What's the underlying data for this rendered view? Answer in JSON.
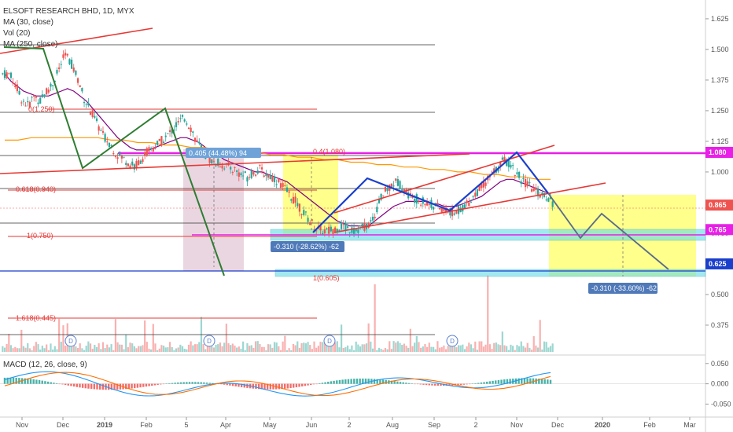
{
  "legend": {
    "symbol": "ELSOFT RESEARCH BHD, 1D, MYX",
    "ma30": "MA (30, close)",
    "vol": "Vol (20)",
    "ma250": "MA (250, close)",
    "macd": "MACD (12, 26, close, 9)"
  },
  "colors": {
    "up": "#26a69a",
    "down": "#ef5350",
    "ma30": "#800080",
    "ma250": "#ff9800",
    "magenta": "#e91ee8",
    "blue": "#1a3fcc",
    "green": "#2e7d32",
    "red": "#e53935",
    "cyan": "#66d9e8",
    "yellow": "#ffff66",
    "pink": "#d8b4c8",
    "grey": "#777777"
  },
  "chart_data": {
    "type": "candlestick",
    "title": "ELSOFT RESEARCH BHD, 1D, MYX",
    "x_ticks": [
      "Nov",
      "Dec",
      "2019",
      "Feb",
      "5",
      "Apr",
      "May",
      "Jun",
      "2",
      "Aug",
      "Sep",
      "2",
      "Nov",
      "Dec",
      "2020",
      "Feb",
      "Mar"
    ],
    "y_ticks": [
      "1.625",
      "1.500",
      "1.375",
      "1.250",
      "1.125",
      "1.000",
      "0.875",
      "0.750",
      "0.625",
      "0.500",
      "0.375"
    ],
    "ylim": [
      0.33,
      1.66
    ],
    "price_labels": [
      {
        "text": "1.080",
        "value": 1.08,
        "color": "#e91ee8"
      },
      {
        "text": "0.865",
        "value": 0.865,
        "color": "#ef5350"
      },
      {
        "text": "0.765",
        "value": 0.765,
        "color": "#e91ee8"
      },
      {
        "text": "0.625",
        "value": 0.625,
        "color": "#1a3fcc"
      }
    ],
    "fib_labels": [
      {
        "text": "0(1.250)",
        "value": 1.25
      },
      {
        "text": "0.618(0.940)",
        "value": 0.94
      },
      {
        "text": "1(0.750)",
        "value": 0.75
      },
      {
        "text": "1(0.605)",
        "value": 0.605
      },
      {
        "text": "1.618(0.445)",
        "value": 0.445
      }
    ],
    "measure_labels": [
      {
        "text": "0.405 (44.48%) 94"
      },
      {
        "text": "0.4(1.080)"
      },
      {
        "text": "-0.310 (-28.62%) -62"
      },
      {
        "text": "-0.310 (-33.60%) -62"
      }
    ],
    "dividend_marker": "D",
    "macd_ticks": [
      "0.050",
      "0.000",
      "-0.050"
    ],
    "macd_ylim": [
      -0.08,
      0.065
    ],
    "close_series": [
      1.4,
      1.36,
      1.3,
      1.27,
      1.31,
      1.29,
      1.33,
      1.36,
      1.42,
      1.48,
      1.44,
      1.38,
      1.3,
      1.25,
      1.2,
      1.15,
      1.12,
      1.08,
      1.06,
      1.04,
      1.02,
      1.05,
      1.08,
      1.1,
      1.12,
      1.14,
      1.17,
      1.2,
      1.22,
      1.18,
      1.12,
      1.08,
      1.05,
      1.04,
      1.03,
      1.02,
      1.01,
      0.99,
      0.98,
      1.0,
      1.01,
      0.99,
      0.98,
      0.96,
      0.93,
      0.9,
      0.87,
      0.83,
      0.8,
      0.77,
      0.76,
      0.76,
      0.77,
      0.78,
      0.77,
      0.76,
      0.77,
      0.78,
      0.8,
      0.88,
      0.92,
      0.95,
      0.96,
      0.93,
      0.9,
      0.89,
      0.88,
      0.87,
      0.86,
      0.85,
      0.84,
      0.83,
      0.85,
      0.87,
      0.9,
      0.93,
      0.96,
      0.99,
      1.02,
      1.05,
      1.03,
      0.99,
      0.96,
      0.94,
      0.92,
      0.91,
      0.895,
      0.865
    ],
    "ma30_series": [
      1.4,
      1.37,
      1.35,
      1.33,
      1.32,
      1.31,
      1.31,
      1.31,
      1.32,
      1.33,
      1.34,
      1.33,
      1.31,
      1.29,
      1.26,
      1.23,
      1.2,
      1.17,
      1.14,
      1.12,
      1.1,
      1.09,
      1.09,
      1.09,
      1.1,
      1.11,
      1.12,
      1.13,
      1.14,
      1.14,
      1.13,
      1.12,
      1.1,
      1.08,
      1.07,
      1.05,
      1.04,
      1.03,
      1.02,
      1.01,
      1.0,
      1.0,
      0.99,
      0.98,
      0.97,
      0.96,
      0.94,
      0.92,
      0.9,
      0.88,
      0.86,
      0.84,
      0.82,
      0.8,
      0.79,
      0.78,
      0.78,
      0.78,
      0.78,
      0.8,
      0.82,
      0.84,
      0.86,
      0.87,
      0.88,
      0.88,
      0.88,
      0.88,
      0.87,
      0.87,
      0.86,
      0.86,
      0.86,
      0.87,
      0.88,
      0.89,
      0.9,
      0.92,
      0.94,
      0.96,
      0.97,
      0.97,
      0.96,
      0.95,
      0.94,
      0.93,
      0.92,
      0.91
    ],
    "ma250_series": [
      1.13,
      1.13,
      1.14,
      1.14,
      1.14,
      1.14,
      1.14,
      1.14,
      1.13,
      1.13,
      1.12,
      1.12,
      1.11,
      1.11,
      1.1,
      1.1,
      1.09,
      1.09,
      1.08,
      1.08,
      1.07,
      1.07,
      1.06,
      1.06,
      1.05,
      1.05,
      1.04,
      1.04,
      1.03,
      1.03,
      1.02,
      1.02,
      1.01,
      1.01,
      1.0,
      1.0,
      0.99,
      0.99,
      0.98,
      0.98,
      0.97,
      0.97
    ]
  }
}
